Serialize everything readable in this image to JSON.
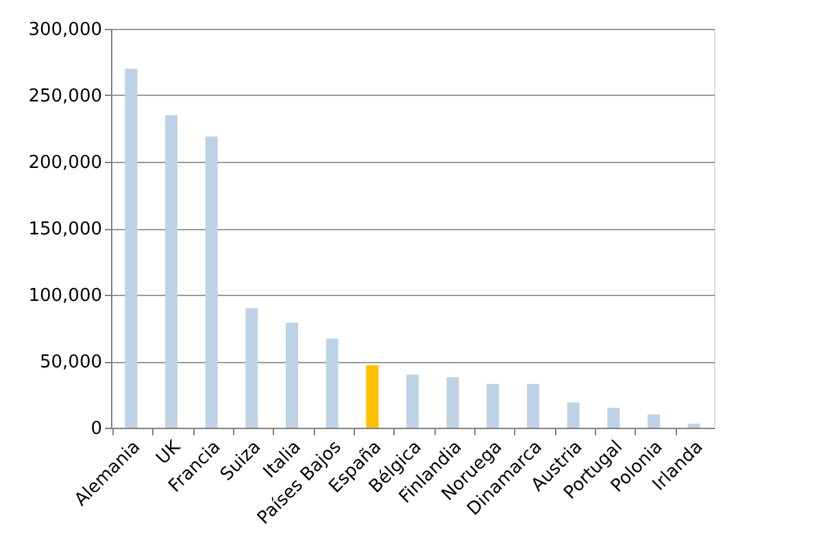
{
  "chart_data": {
    "type": "bar",
    "categories": [
      "Alemania",
      "UK",
      "Francia",
      "Suiza",
      "Italia",
      "Países Bajos",
      "España",
      "Bélgica",
      "Finlandia",
      "Noruega",
      "Dinamarca",
      "Austria",
      "Portugal",
      "Polonia",
      "Irlanda"
    ],
    "values": [
      270000,
      235000,
      219000,
      90000,
      79000,
      67000,
      47000,
      40000,
      38000,
      33000,
      33000,
      19000,
      15000,
      10000,
      3000
    ],
    "colors": [
      "#bdd3e5",
      "#bdd3e5",
      "#bdd3e5",
      "#bdd3e5",
      "#bdd3e5",
      "#bdd3e5",
      "#ffc000",
      "#bdd3e5",
      "#bdd3e5",
      "#bdd3e5",
      "#bdd3e5",
      "#bdd3e5",
      "#bdd3e5",
      "#bdd3e5",
      "#bdd3e5"
    ],
    "ylim": [
      0,
      300000
    ],
    "yticks": [
      0,
      {
        "value": 50000,
        "label": "50,000"
      },
      {
        "value": 100000,
        "label": "100,000"
      },
      {
        "value": 150000,
        "label": "150,000"
      },
      {
        "value": 200000,
        "label": "200,000"
      },
      {
        "value": 250000,
        "label": "250,000"
      },
      {
        "value": 300000,
        "label": "300,000"
      }
    ],
    "grid": "y"
  }
}
